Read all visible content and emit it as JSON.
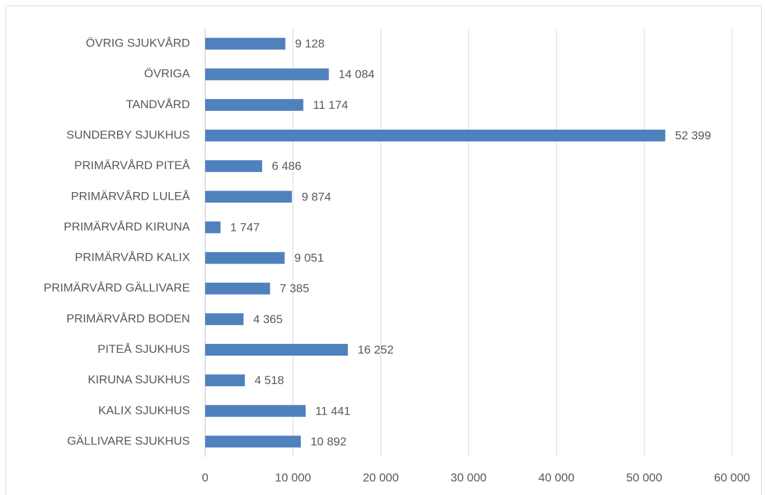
{
  "chart_data": {
    "type": "hbar",
    "categories": [
      "ÖVRIG SJUKVÅRD",
      "ÖVRIGA",
      "TANDVÅRD",
      "SUNDERBY SJUKHUS",
      "PRIMÄRVÅRD PITEÅ",
      "PRIMÄRVÅRD LULEÅ",
      "PRIMÄRVÅRD KIRUNA",
      "PRIMÄRVÅRD KALIX",
      "PRIMÄRVÅRD GÄLLIVARE",
      "PRIMÄRVÅRD BODEN",
      "PITEÅ SJUKHUS",
      "KIRUNA SJUKHUS",
      "KALIX SJUKHUS",
      "GÄLLIVARE SJUKHUS"
    ],
    "values": [
      9128,
      14084,
      11174,
      52399,
      6486,
      9874,
      1747,
      9051,
      7385,
      4365,
      16252,
      4518,
      11441,
      10892
    ],
    "value_labels": [
      "9 128",
      "14 084",
      "11 174",
      "52 399",
      "6 486",
      "9 874",
      "1 747",
      "9 051",
      "7 385",
      "4 365",
      "16 252",
      "4 518",
      "11 441",
      "10 892"
    ],
    "color": "#4f81bd",
    "xlim": [
      0,
      60000
    ],
    "xticks": [
      0,
      {
        "value": 10000,
        "label": "10 000"
      },
      {
        "value": 20000,
        "label": "20 000"
      },
      {
        "value": 30000,
        "label": "30 000"
      },
      {
        "value": 40000,
        "label": "40 000"
      },
      {
        "value": 50000,
        "label": "50 000"
      },
      {
        "value": 60000,
        "label": "60 000"
      }
    ],
    "grid": true
  }
}
